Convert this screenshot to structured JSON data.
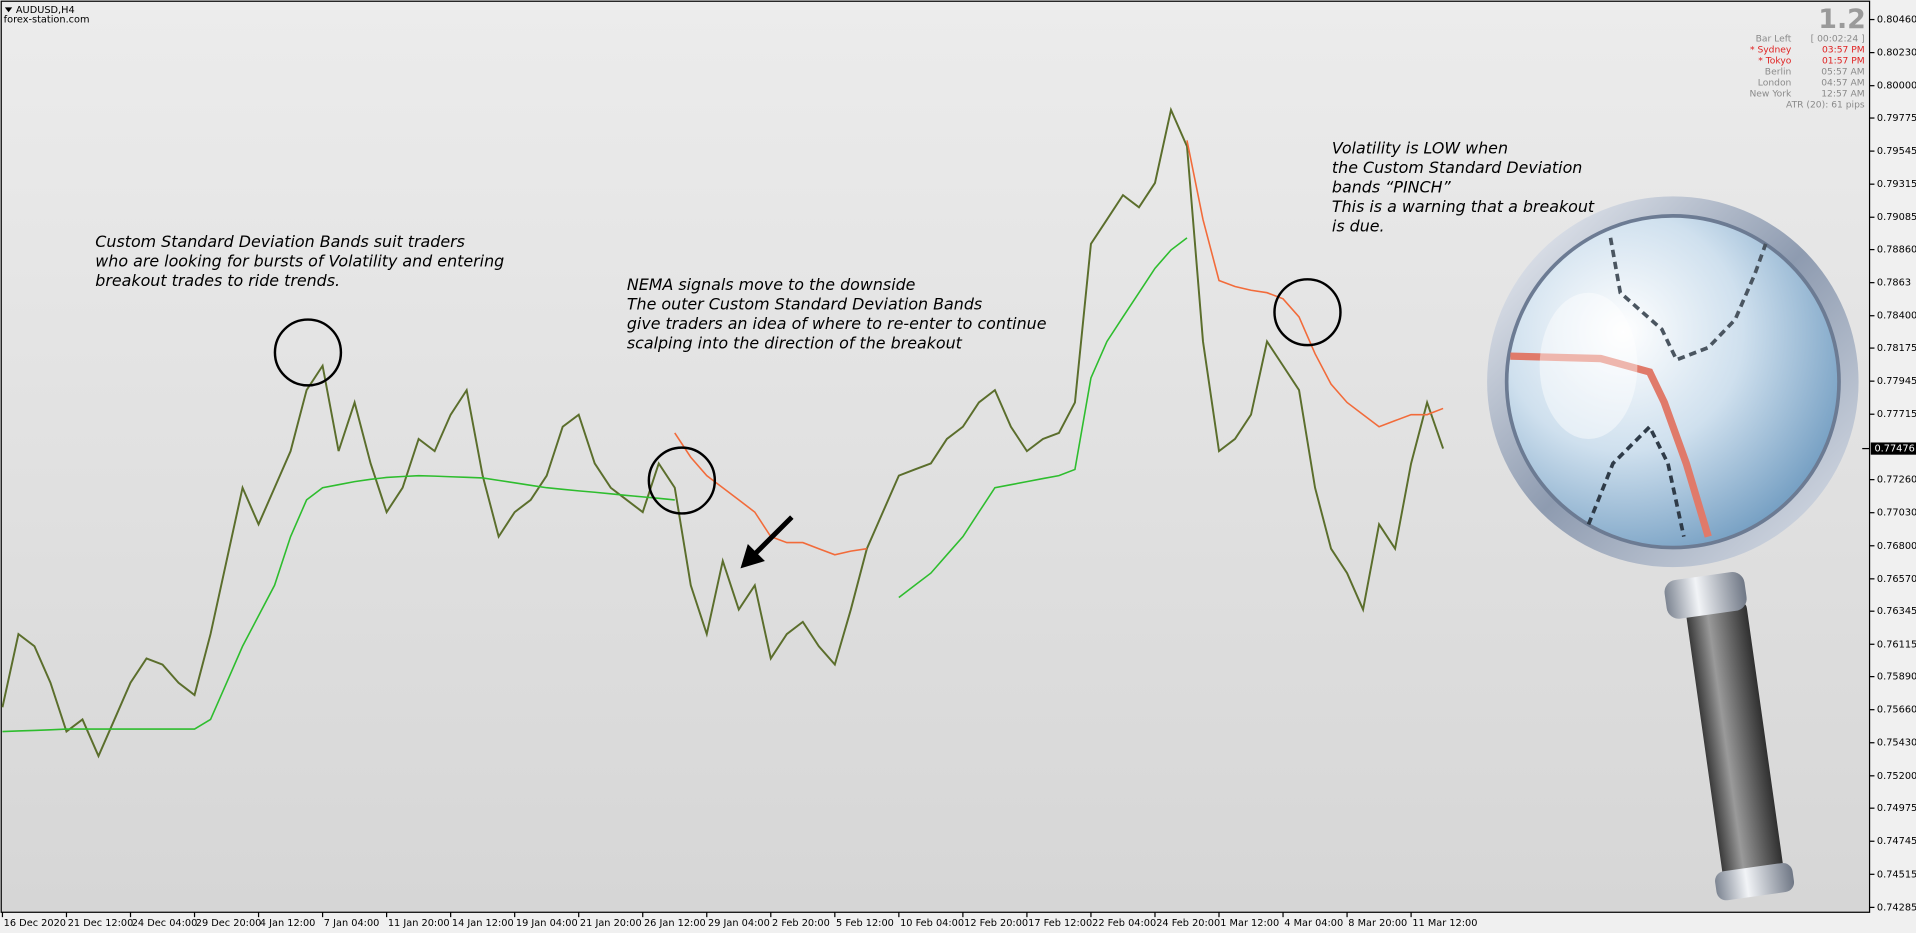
{
  "header": {
    "symbol": "AUDUSD,H4",
    "site": "forex-station.com"
  },
  "info_panel": {
    "version": "1.2",
    "rows": [
      [
        "Bar Left",
        "[ 00:02:24 ]"
      ],
      [
        "* Sydney",
        "03:57 PM"
      ],
      [
        "* Tokyo",
        "01:57 PM"
      ],
      [
        "Berlin",
        "05:57 AM"
      ],
      [
        "London",
        "04:57 AM"
      ],
      [
        "New York",
        "12:57 AM"
      ]
    ],
    "atr": "ATR (20): 61 pips"
  },
  "chart_data": {
    "type": "line",
    "categories": [
      "16 Dec 2020",
      null,
      null,
      null,
      "21 Dec 12:00",
      null,
      null,
      null,
      "24 Dec 04:00",
      null,
      null,
      null,
      "29 Dec 20:00",
      null,
      null,
      null,
      "4 Jan 12:00",
      null,
      null,
      null,
      "7 Jan 04:00",
      null,
      null,
      null,
      "11 Jan 20:00",
      null,
      null,
      null,
      "14 Jan 12:00",
      null,
      null,
      null,
      "19 Jan 04:00",
      null,
      null,
      null,
      "21 Jan 20:00",
      null,
      null,
      null,
      "26 Jan 12:00",
      null,
      null,
      null,
      "29 Jan 04:00",
      null,
      null,
      null,
      "2 Feb 20:00",
      null,
      null,
      null,
      "5 Feb 12:00",
      null,
      null,
      null,
      "10 Feb 04:00",
      null,
      null,
      null,
      "12 Feb 20:00",
      null,
      null,
      null,
      "17 Feb 12:00",
      null,
      null,
      null,
      "22 Feb 04:00",
      null,
      null,
      null,
      "24 Feb 20:00",
      null,
      null,
      null,
      "1 Mar 12:00",
      null,
      null,
      null,
      "4 Mar 04:00",
      null,
      null,
      null,
      "8 Mar 20:00",
      null,
      null,
      null,
      "11 Mar 12:00",
      null,
      null
    ],
    "series": [
      {
        "color": "#5b6e2c",
        "values": [
          0.75677,
          0.76186,
          0.76101,
          0.75847,
          0.75508,
          0.75592,
          0.75338,
          0.75592,
          0.75847,
          0.76016,
          0.75974,
          0.75847,
          0.75762,
          0.76186,
          0.76695,
          0.77204,
          0.76949,
          0.77204,
          0.77458,
          0.77882,
          0.78052,
          0.77458,
          0.77797,
          0.77373,
          0.77034,
          0.77204,
          0.77543,
          0.77458,
          0.77712,
          0.77882,
          0.77288,
          0.76864,
          0.77034,
          0.77119,
          0.77288,
          0.77628,
          0.77712,
          0.77373,
          0.77204,
          0.77119,
          0.77034,
          0.77373,
          0.77204,
          0.76525,
          0.76186,
          0.76695,
          0.76356,
          0.76525,
          0.76016,
          0.76186,
          0.76271,
          0.76101,
          0.75974,
          0.76356,
          0.7678,
          0.77034,
          0.77288,
          0.77331,
          0.77373,
          0.77543,
          0.77628,
          0.77797,
          0.77882,
          0.77628,
          0.77458,
          0.77543,
          0.77585,
          0.77797,
          0.789,
          0.79069,
          0.79239,
          0.79154,
          0.79324,
          0.79832,
          0.79578,
          0.78221,
          0.77458,
          0.77543,
          0.77712,
          0.78221,
          0.78052,
          0.77882,
          0.77204,
          0.7678,
          0.7661,
          0.76356,
          0.76949,
          0.7678,
          0.77373,
          0.77797,
          0.77476
        ]
      },
      {
        "color": "#2ebd2e",
        "values": [
          0.75508,
          0.75512,
          0.75516,
          0.7552,
          0.75525,
          0.75525,
          0.75525,
          0.75525,
          0.75525,
          0.75525,
          0.75525,
          0.75525,
          0.75525,
          0.75592,
          0.75846,
          0.76101,
          0.76313,
          0.76525,
          0.76864,
          0.77119,
          0.77204,
          0.77225,
          0.77246,
          0.77262,
          0.77275,
          0.77282,
          0.77288,
          0.77284,
          0.7728,
          0.77276,
          0.77272,
          0.77255,
          0.77238,
          0.77221,
          0.77204,
          0.77193,
          0.77182,
          0.77172,
          0.77161,
          0.7715,
          0.7714,
          0.7713,
          0.77119,
          null,
          null,
          null,
          null,
          null,
          null,
          null,
          null,
          null,
          null,
          null,
          null,
          null,
          0.7644,
          0.76525,
          0.7661,
          0.76737,
          0.76864,
          0.77034,
          0.77204,
          0.77225,
          0.77246,
          0.77267,
          0.77288,
          0.77331,
          0.77967,
          0.78221,
          0.78391,
          0.7856,
          0.7873,
          0.78857,
          0.78942,
          null,
          null,
          null,
          null,
          null,
          null,
          null,
          null,
          null,
          null,
          null,
          null,
          null,
          null,
          null,
          null
        ]
      },
      {
        "color": "#f26b3a",
        "values": [
          null,
          null,
          null,
          null,
          null,
          null,
          null,
          null,
          null,
          null,
          null,
          null,
          null,
          null,
          null,
          null,
          null,
          null,
          null,
          null,
          null,
          null,
          null,
          null,
          null,
          null,
          null,
          null,
          null,
          null,
          null,
          null,
          null,
          null,
          null,
          null,
          null,
          null,
          null,
          null,
          null,
          null,
          0.77585,
          0.77416,
          0.77288,
          0.77204,
          0.77119,
          0.77034,
          0.76864,
          0.76822,
          0.76822,
          0.7678,
          0.76737,
          0.76763,
          0.7678,
          null,
          null,
          null,
          null,
          null,
          null,
          null,
          null,
          null,
          null,
          null,
          null,
          null,
          null,
          null,
          null,
          null,
          null,
          null,
          0.7962,
          0.79069,
          0.78645,
          0.78603,
          0.78577,
          0.7856,
          0.78518,
          0.78391,
          0.78136,
          0.77924,
          0.77797,
          0.77712,
          0.77628,
          0.7767,
          0.77712,
          0.77712,
          0.77755
        ]
      }
    ],
    "ylim": [
      0.74251,
      0.80579
    ],
    "yticks": [
      {
        "value": 0.8046,
        "label": "0.80460"
      },
      {
        "value": 0.8023,
        "label": "0.80230"
      },
      {
        "value": 0.8,
        "label": "0.80000"
      },
      0.79775,
      0.79545,
      0.79315,
      0.79085,
      {
        "value": 0.7886,
        "label": "0.78860"
      },
      0.7863,
      {
        "value": 0.784,
        "label": "0.78400"
      },
      0.78175,
      0.77945,
      0.77715,
      {
        "value": 0.7726,
        "label": "0.77260"
      },
      {
        "value": 0.7703,
        "label": "0.77030"
      },
      {
        "value": 0.768,
        "label": "0.76800"
      },
      {
        "value": 0.7657,
        "label": "0.76570"
      },
      0.76345,
      0.76115,
      {
        "value": 0.7589,
        "label": "0.75890"
      },
      {
        "value": 0.7566,
        "label": "0.75660"
      },
      {
        "value": 0.7543,
        "label": "0.75430"
      },
      {
        "value": 0.752,
        "label": "0.75200"
      },
      0.74975,
      0.74745,
      0.74515,
      0.74285
    ],
    "grid": false,
    "current_price": 0.77476,
    "annotations": [
      {
        "lines": [
          "Custom Standard Deviation Bands suit traders",
          "who are looking for bursts of Volatility and entering",
          "breakout trades to ride trends."
        ]
      },
      {
        "lines": [
          "NEMA signals move to the downside",
          "The outer Custom Standard Deviation Bands",
          "give traders an idea of where to re-enter to continue",
          "scalping into the direction of the breakout"
        ]
      },
      {
        "lines": [
          "Volatility is LOW when",
          "the Custom Standard Deviation",
          "bands “PINCH”",
          "This is a warning that a breakout",
          "is due."
        ]
      }
    ]
  }
}
